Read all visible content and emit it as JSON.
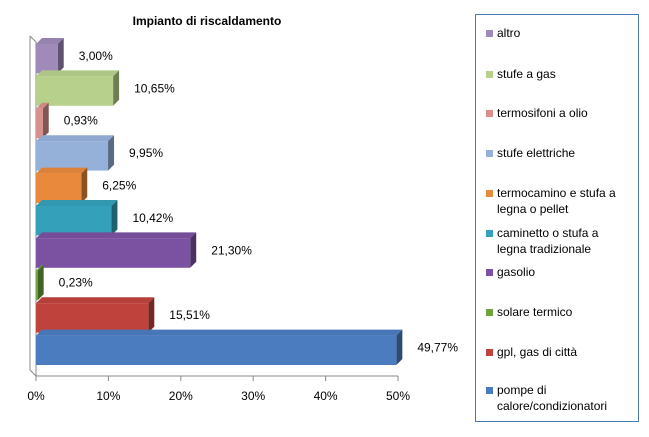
{
  "chart_data": {
    "type": "bar",
    "orientation": "horizontal",
    "title": "Impianto di riscaldamento",
    "categories": [
      "altro",
      "stufe a gas",
      "termosifoni a olio",
      "stufe elettriche",
      "termocamino e stufa a legna o pellet",
      "caminetto o stufa a legna tradizionale",
      "gasolio",
      "solare termico",
      "gpl, gas di città",
      "pompe di calore/condizionatori"
    ],
    "values": [
      3.0,
      10.65,
      0.93,
      9.95,
      6.25,
      10.42,
      21.3,
      0.23,
      15.51,
      49.77
    ],
    "value_labels": [
      "3,00%",
      "10,65%",
      "0,93%",
      "9,95%",
      "6,25%",
      "10,42%",
      "21,30%",
      "0,23%",
      "15,51%",
      "49,77%"
    ],
    "colors": [
      "#9f8ab9",
      "#b7d08c",
      "#d98f8c",
      "#95b1da",
      "#e8893b",
      "#35a0b9",
      "#7b51a1",
      "#70a33d",
      "#c0423d",
      "#4a7cbf"
    ],
    "xlim": [
      0,
      50
    ],
    "xticks": [
      {
        "value": 0,
        "label": "0%"
      },
      {
        "value": 10,
        "label": "10%"
      },
      {
        "value": 20,
        "label": "20%"
      },
      {
        "value": 30,
        "label": "30%"
      },
      {
        "value": 40,
        "label": "40%"
      },
      {
        "value": 50,
        "label": "50%"
      }
    ],
    "legend": "right"
  }
}
